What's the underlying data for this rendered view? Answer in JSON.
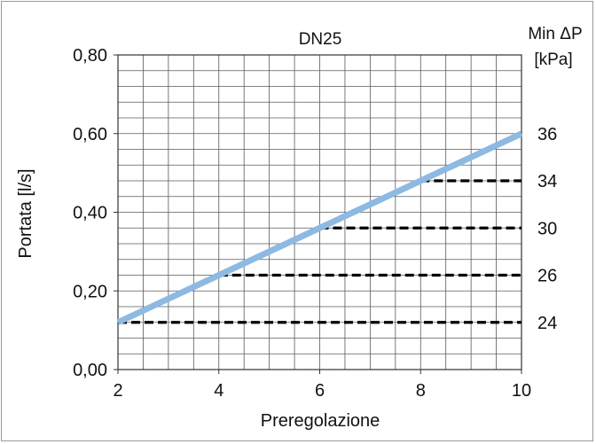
{
  "chart_data": {
    "type": "line",
    "title": "DN25",
    "xlabel": "Preregolazione",
    "ylabel": "Portata [l/s]",
    "right_axis_title_line1": "Min ΔP",
    "right_axis_title_line2": "[kPa]",
    "xlim": [
      2,
      10
    ],
    "ylim": [
      0,
      0.8
    ],
    "x_ticks": [
      2,
      4,
      6,
      8,
      10
    ],
    "x_tick_labels": [
      "2",
      "4",
      "6",
      "8",
      "10"
    ],
    "y_ticks": [
      0,
      0.2,
      0.4,
      0.6,
      0.8
    ],
    "y_tick_labels": [
      "0,00",
      "0,20",
      "0,40",
      "0,60",
      "0,80"
    ],
    "grid": true,
    "series": [
      {
        "x": [
          2,
          10
        ],
        "y": [
          0.12,
          0.6
        ],
        "color": "#8db9e2"
      }
    ],
    "reference_lines": [
      {
        "y": 0.12,
        "x_from": 2,
        "x_to": 10
      },
      {
        "y": 0.24,
        "x_from": 4,
        "x_to": 10
      },
      {
        "y": 0.36,
        "x_from": 6,
        "x_to": 10
      },
      {
        "y": 0.48,
        "x_from": 8,
        "x_to": 10
      }
    ],
    "right_labels": [
      {
        "y": 0.6,
        "text": "36"
      },
      {
        "y": 0.48,
        "text": "34"
      },
      {
        "y": 0.36,
        "text": "30"
      },
      {
        "y": 0.24,
        "text": "26"
      },
      {
        "y": 0.12,
        "text": "24"
      }
    ]
  }
}
